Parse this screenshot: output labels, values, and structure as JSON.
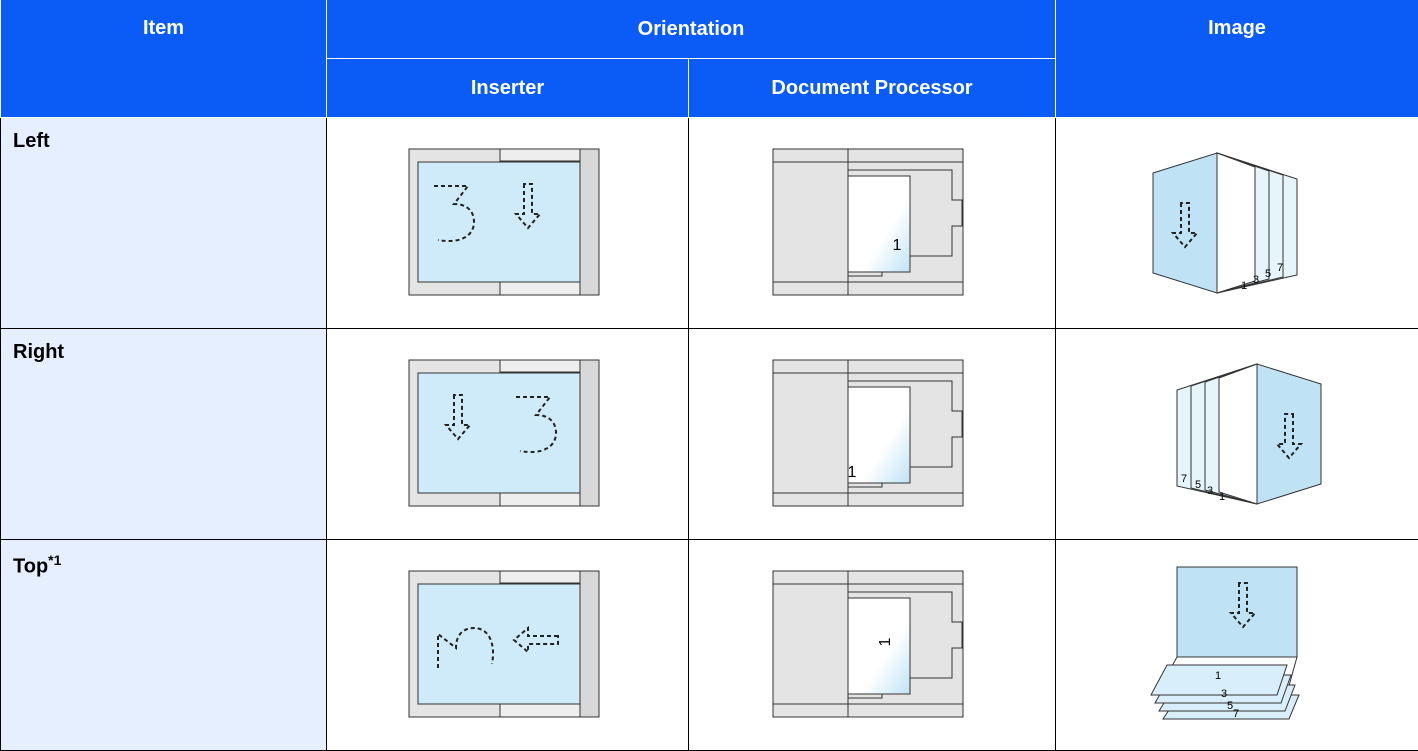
{
  "table": {
    "header": {
      "item": "Item",
      "orientation": "Orientation",
      "image": "Image",
      "inserter": "Inserter",
      "document_processor": "Document Processor"
    },
    "rows": [
      {
        "item": "Left",
        "processor_label": "1",
        "image_labels": [
          "1",
          "3",
          "5",
          "7"
        ]
      },
      {
        "item": "Right",
        "processor_label": "1",
        "image_labels": [
          "1",
          "3",
          "5",
          "7"
        ]
      },
      {
        "item": "Top",
        "item_note": "*1",
        "processor_label": "1",
        "image_labels": [
          "1",
          "3",
          "5",
          "7"
        ]
      }
    ]
  }
}
